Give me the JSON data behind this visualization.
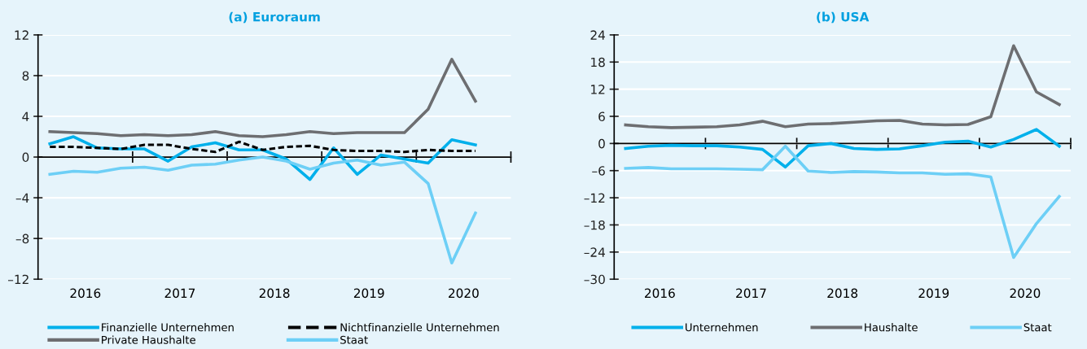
{
  "chart_data": [
    {
      "type": "line",
      "title": "(a) Euroraum",
      "x": [
        2016.125,
        2016.375,
        2016.625,
        2016.875,
        2017.125,
        2017.375,
        2017.625,
        2017.875,
        2018.125,
        2018.375,
        2018.625,
        2018.875,
        2019.125,
        2019.375,
        2019.625,
        2019.875,
        2020.125,
        2020.375,
        2020.625
      ],
      "series": [
        {
          "name": "Finanzielle Unternehmen",
          "color": "#00b0eb",
          "line_style": "solid",
          "values": [
            1.3,
            2.0,
            0.9,
            0.8,
            0.8,
            -0.4,
            1.0,
            1.4,
            0.7,
            0.7,
            -0.2,
            -2.2,
            0.9,
            -1.7,
            0.2,
            -0.2,
            -0.6,
            1.7,
            1.2
          ]
        },
        {
          "name": "Nichtfinanzielle Unternehmen",
          "color": "#000000",
          "line_style": "dashed",
          "values": [
            1.0,
            1.0,
            0.9,
            0.8,
            1.2,
            1.2,
            0.8,
            0.5,
            1.5,
            0.7,
            1.0,
            1.1,
            0.7,
            0.6,
            0.6,
            0.5,
            0.7,
            0.6,
            0.6
          ]
        },
        {
          "name": "Private Haushalte",
          "color": "#6d6e71",
          "line_style": "solid",
          "values": [
            2.5,
            2.4,
            2.3,
            2.1,
            2.2,
            2.1,
            2.2,
            2.5,
            2.1,
            2.0,
            2.2,
            2.5,
            2.3,
            2.4,
            2.4,
            2.4,
            4.7,
            9.6,
            5.5
          ]
        },
        {
          "name": "Staat",
          "color": "#6dcff6",
          "line_style": "solid",
          "values": [
            -1.7,
            -1.4,
            -1.5,
            -1.1,
            -1.0,
            -1.3,
            -0.8,
            -0.7,
            -0.3,
            0.0,
            -0.4,
            -1.2,
            -0.6,
            -0.3,
            -0.8,
            -0.5,
            -2.6,
            -10.4,
            -5.5
          ]
        }
      ],
      "xlim": [
        2016,
        2021
      ],
      "xticks": [
        {
          "value": 2016.5,
          "label": "2016"
        },
        {
          "value": 2017.5,
          "label": "2017"
        },
        {
          "value": 2018.5,
          "label": "2018"
        },
        {
          "value": 2019.5,
          "label": "2019"
        },
        {
          "value": 2020.5,
          "label": "2020"
        },
        {
          "value": 2017,
          "label": null
        },
        {
          "value": 2018,
          "label": null
        },
        {
          "value": 2019,
          "label": null
        },
        {
          "value": 2020,
          "label": null
        },
        {
          "value": 2021,
          "label": null
        }
      ],
      "ylim": [
        -12,
        12
      ],
      "yticks": [
        {
          "value": -12,
          "label": "–12"
        },
        {
          "value": -8,
          "label": "–8"
        },
        {
          "value": -4,
          "label": "–4"
        },
        0,
        4,
        8,
        12
      ],
      "grid": "y",
      "legend": "bottom",
      "marker": "none"
    },
    {
      "type": "line",
      "title": "(b) USA",
      "x": [
        2016.125,
        2016.375,
        2016.625,
        2016.875,
        2017.125,
        2017.375,
        2017.625,
        2017.875,
        2018.125,
        2018.375,
        2018.625,
        2018.875,
        2019.125,
        2019.375,
        2019.625,
        2019.875,
        2020.125,
        2020.375,
        2020.625,
        2020.875
      ],
      "series": [
        {
          "name": "Unternehmen",
          "color": "#00b0eb",
          "line_style": "solid",
          "values": [
            -1.1,
            -0.6,
            -0.4,
            -0.5,
            -0.5,
            -0.8,
            -1.3,
            -5.2,
            -0.5,
            0.0,
            -1.1,
            -1.3,
            -1.2,
            -0.5,
            0.3,
            0.5,
            -0.8,
            0.9,
            3.1,
            -0.6
          ]
        },
        {
          "name": "Haushalte",
          "color": "#6d6e71",
          "line_style": "solid",
          "values": [
            4.1,
            3.7,
            3.5,
            3.6,
            3.7,
            4.1,
            4.9,
            3.7,
            4.3,
            4.4,
            4.7,
            5.0,
            5.1,
            4.3,
            4.1,
            4.2,
            5.9,
            21.6,
            11.4,
            8.6
          ]
        },
        {
          "name": "Staat",
          "color": "#6dcff6",
          "line_style": "solid",
          "values": [
            -5.5,
            -5.3,
            -5.6,
            -5.6,
            -5.6,
            -5.7,
            -5.8,
            -0.6,
            -6.1,
            -6.4,
            -6.2,
            -6.3,
            -6.5,
            -6.5,
            -6.8,
            -6.7,
            -7.4,
            -25.2,
            -17.7,
            -11.7
          ]
        }
      ],
      "xlim": [
        2016,
        2021
      ],
      "xticks": [
        {
          "value": 2016.5,
          "label": "2016"
        },
        {
          "value": 2017.5,
          "label": "2017"
        },
        {
          "value": 2018.5,
          "label": "2018"
        },
        {
          "value": 2019.5,
          "label": "2019"
        },
        {
          "value": 2020.5,
          "label": "2020"
        },
        {
          "value": 2017,
          "label": null
        },
        {
          "value": 2018,
          "label": null
        },
        {
          "value": 2019,
          "label": null
        },
        {
          "value": 2020,
          "label": null
        },
        {
          "value": 2021,
          "label": null
        }
      ],
      "ylim": [
        -30,
        24
      ],
      "yticks": [
        {
          "value": -30,
          "label": "–30"
        },
        {
          "value": -24,
          "label": "–24"
        },
        {
          "value": -18,
          "label": "–18"
        },
        {
          "value": -12,
          "label": "–12"
        },
        {
          "value": -6,
          "label": "–6"
        },
        0,
        6,
        12,
        18,
        24
      ],
      "grid": "y",
      "legend": "bottom",
      "marker": "none"
    }
  ]
}
